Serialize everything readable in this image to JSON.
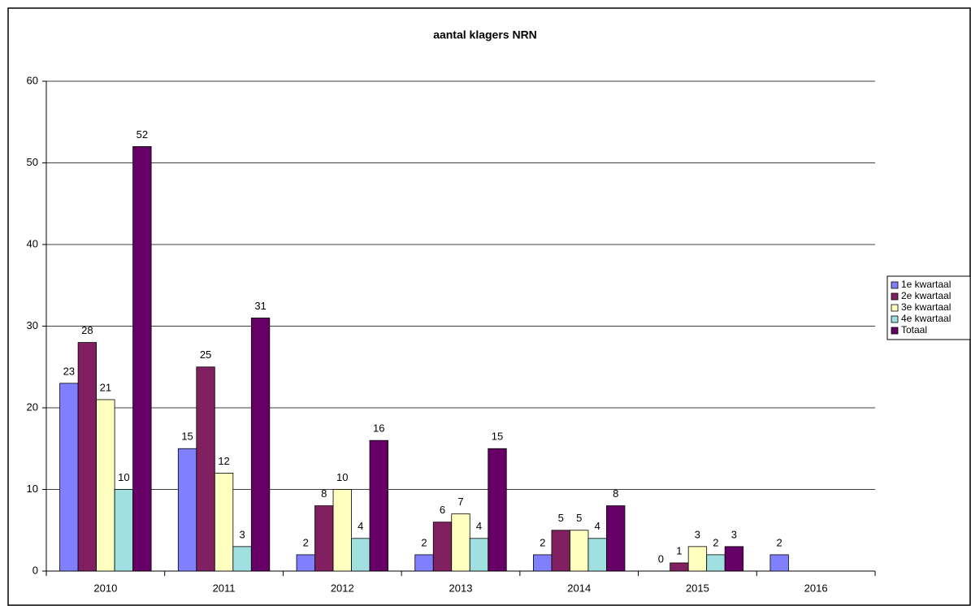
{
  "chart_data": {
    "type": "bar",
    "title": "aantal klagers NRN",
    "categories": [
      "2010",
      "2011",
      "2012",
      "2013",
      "2014",
      "2015",
      "2016"
    ],
    "series": [
      {
        "name": "1e kwartaal",
        "color": "#8080ff",
        "values": [
          23,
          15,
          2,
          2,
          2,
          0,
          2
        ]
      },
      {
        "name": "2e kwartaal",
        "color": "#802060",
        "values": [
          28,
          25,
          8,
          6,
          5,
          1,
          null
        ]
      },
      {
        "name": "3e kwartaal",
        "color": "#ffffc0",
        "values": [
          21,
          12,
          10,
          7,
          5,
          3,
          null
        ]
      },
      {
        "name": "4e kwartaal",
        "color": "#a0e0e0",
        "values": [
          10,
          3,
          4,
          4,
          4,
          2,
          null
        ]
      },
      {
        "name": "Totaal",
        "color": "#660066",
        "values": [
          52,
          31,
          16,
          15,
          8,
          3,
          null
        ]
      }
    ],
    "ylim": [
      0,
      60
    ],
    "yticks": [
      0,
      10,
      20,
      30,
      40,
      50,
      60
    ],
    "grid": true,
    "legend": "right"
  }
}
